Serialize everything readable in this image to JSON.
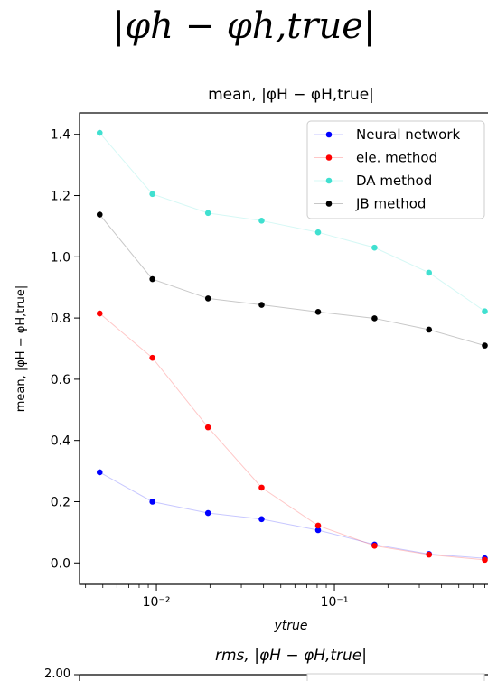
{
  "header": {
    "title": "|φh − φh,true|"
  },
  "chart_data": [
    {
      "type": "line",
      "title": "mean, |φH − φH,true|",
      "xlabel": "ytrue",
      "ylabel": "mean, |φH − φH,true|",
      "xscale": "log",
      "xlim": [
        0.0037,
        0.9
      ],
      "ylim": [
        -0.07,
        1.47
      ],
      "x_ticks": [
        {
          "value": 0.01,
          "label": "10⁻²"
        },
        {
          "value": 0.1,
          "label": "10⁻¹"
        }
      ],
      "y_ticks": [
        {
          "value": 0.0,
          "label": "0.0"
        },
        {
          "value": 0.2,
          "label": "0.2"
        },
        {
          "value": 0.4,
          "label": "0.4"
        },
        {
          "value": 0.6,
          "label": "0.6"
        },
        {
          "value": 0.8,
          "label": "0.8"
        },
        {
          "value": 1.0,
          "label": "1.0"
        },
        {
          "value": 1.2,
          "label": "1.2"
        },
        {
          "value": 1.4,
          "label": "1.4"
        }
      ],
      "legend_position": "top-right",
      "x": [
        0.0048,
        0.0095,
        0.0195,
        0.039,
        0.081,
        0.168,
        0.34,
        0.7
      ],
      "series": [
        {
          "name": "Neural network",
          "color": "#0000ff",
          "values": [
            0.296,
            0.2,
            0.163,
            0.143,
            0.107,
            0.06,
            0.029,
            0.015
          ]
        },
        {
          "name": "ele. method",
          "color": "#ff0000",
          "values": [
            0.815,
            0.67,
            0.443,
            0.246,
            0.122,
            0.056,
            0.027,
            0.01
          ]
        },
        {
          "name": "DA method",
          "color": "#40e0d0",
          "values": [
            1.405,
            1.205,
            1.143,
            1.118,
            1.08,
            1.03,
            0.948,
            0.822
          ]
        },
        {
          "name": "JB method",
          "color": "#000000",
          "values": [
            1.138,
            0.927,
            0.864,
            0.843,
            0.82,
            0.799,
            0.762,
            0.71
          ]
        }
      ]
    },
    {
      "type": "line",
      "title": "rms, |φH − φH,true|",
      "y_ticks": [
        {
          "value": 2.0,
          "label": "2.00"
        }
      ]
    }
  ]
}
